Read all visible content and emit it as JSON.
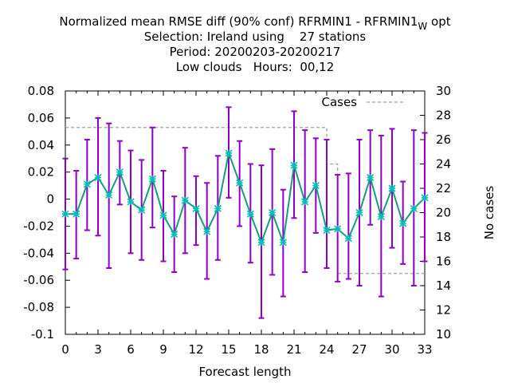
{
  "chart_data": {
    "type": "line",
    "title": {
      "line1_main": "Normalized mean RMSE diff (90% conf) RFRMIN1 - RFRMIN1",
      "line1_sub": "W",
      "line1_tail": "opt",
      "line2": "Selection: Ireland using    27 stations",
      "line3": "Period: 20200203-20200217",
      "line4": "Low clouds   Hours:  00,12"
    },
    "xlabel": "Forecast length",
    "ylabel": "",
    "y2label": "No cases",
    "xlim": [
      0,
      33
    ],
    "ylim": [
      -0.1,
      0.08
    ],
    "y2lim": [
      10,
      30
    ],
    "xticks": [
      "0",
      "3",
      "6",
      "9",
      "12",
      "15",
      "18",
      "21",
      "24",
      "27",
      "30",
      "33"
    ],
    "yticks": [
      "0.08",
      "0.06",
      "0.04",
      "0.02",
      "0",
      "-0.02",
      "-0.04",
      "-0.06",
      "-0.08",
      "-0.1"
    ],
    "y2ticks": [
      "30",
      "28",
      "26",
      "24",
      "22",
      "20",
      "18",
      "16",
      "14",
      "12",
      "10"
    ],
    "grid": false,
    "legend": {
      "label": "Cases",
      "placement": "top-right"
    },
    "colors": {
      "mean": "#1a9a80",
      "errorbar": "#8c00c8",
      "marker": "#00bcbc",
      "cases": "#a0a0a0"
    },
    "series": [
      {
        "x": [
          0,
          1,
          2,
          3,
          4,
          5,
          6,
          7,
          8,
          9,
          10,
          11,
          12,
          13,
          14,
          15,
          16,
          17,
          18,
          19,
          20,
          21,
          22,
          23,
          24,
          25,
          26,
          27,
          28,
          29,
          30,
          31,
          32,
          33
        ],
        "values": [
          -0.011,
          -0.011,
          0.011,
          0.016,
          0.003,
          0.02,
          -0.002,
          -0.008,
          0.015,
          -0.012,
          -0.026,
          -0.001,
          -0.007,
          -0.024,
          -0.007,
          0.034,
          0.012,
          -0.011,
          -0.032,
          -0.01,
          -0.032,
          0.025,
          -0.002,
          0.01,
          -0.023,
          -0.022,
          -0.029,
          -0.01,
          0.016,
          -0.013,
          0.008,
          -0.018,
          -0.007,
          0.001
        ],
        "upper": [
          0.03,
          0.021,
          0.044,
          0.06,
          0.056,
          0.043,
          0.036,
          0.029,
          0.053,
          0.021,
          0.002,
          0.038,
          0.017,
          0.012,
          0.032,
          0.068,
          0.043,
          0.026,
          0.025,
          0.037,
          0.007,
          0.065,
          0.051,
          0.045,
          0.044,
          0.018,
          0.019,
          0.044,
          0.051,
          0.047,
          0.052,
          0.013,
          0.051,
          0.049
        ],
        "lower": [
          -0.052,
          -0.044,
          -0.023,
          -0.027,
          -0.051,
          -0.004,
          -0.04,
          -0.045,
          -0.021,
          -0.046,
          -0.054,
          -0.04,
          -0.034,
          -0.059,
          -0.045,
          0.001,
          -0.02,
          -0.047,
          -0.088,
          -0.056,
          -0.072,
          -0.014,
          -0.054,
          -0.025,
          -0.051,
          -0.061,
          -0.059,
          -0.064,
          -0.019,
          -0.072,
          -0.036,
          -0.048,
          -0.064,
          -0.046
        ]
      },
      {
        "name": "Cases",
        "x": [
          0,
          24,
          24,
          25,
          25,
          33
        ],
        "values": [
          27,
          27,
          24,
          24,
          15,
          15
        ]
      }
    ]
  }
}
